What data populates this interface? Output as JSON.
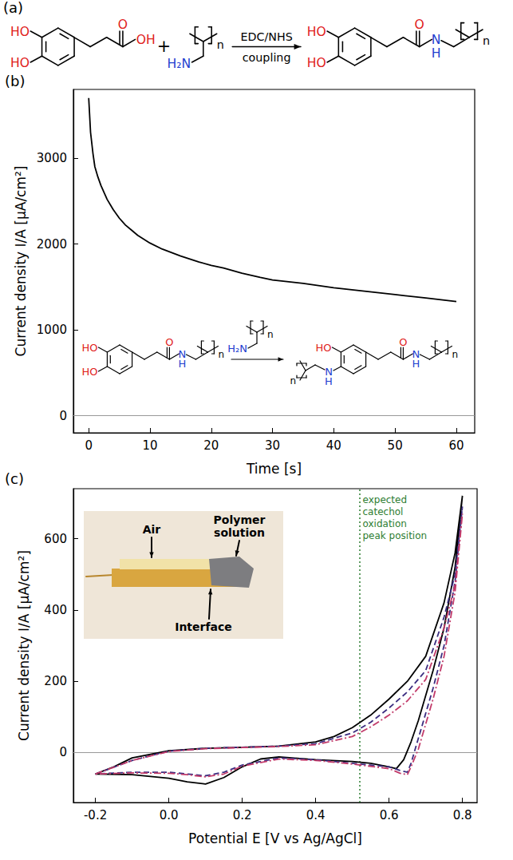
{
  "scheme_a": {
    "panel": "(a)",
    "reactant": {
      "hydroxyls": [
        "HO",
        "HO"
      ],
      "carbonyl": "O",
      "acid": "OH"
    },
    "plus": "+",
    "polymer": {
      "amine": "H₂N",
      "repeat": "n"
    },
    "arrow_above": "EDC/NHS",
    "arrow_below": "coupling",
    "product": {
      "hydroxyls": [
        "HO",
        "HO"
      ],
      "carbonyl": "O",
      "amide": [
        "N",
        "H"
      ],
      "repeat": "n"
    }
  },
  "scheme_b_inset": {
    "reactant": {
      "hydroxyls": [
        "HO",
        "HO"
      ],
      "carbonyl": "O",
      "amide": [
        "N",
        "H"
      ],
      "repeat": "n"
    },
    "polymer": {
      "amine": "H₂N",
      "repeat": "n"
    },
    "product": {
      "hydroxyl": "HO",
      "amine_link": [
        "N",
        "H"
      ],
      "link_repeat": "n",
      "carbonyl": "O",
      "amide": [
        "N",
        "H"
      ],
      "repeat": "n"
    }
  },
  "photo_inset_c": {
    "labels": {
      "air": "Air",
      "solution": "Polymer solution",
      "interface": "Interface"
    }
  },
  "chart_data": [
    {
      "type": "line",
      "panel": "(b)",
      "x_label": "Time [s]",
      "y_label": "Current density I/A [µA/cm²]",
      "xlim": [
        -2.5,
        63
      ],
      "xticks": [
        0,
        10,
        20,
        30,
        40,
        50,
        60
      ],
      "ylim": [
        -200,
        3800
      ],
      "yticks": [
        0,
        1000,
        2000,
        3000
      ],
      "grid": false,
      "hline": 0,
      "series": [
        {
          "color": "#000000",
          "line_style": "solid",
          "x": [
            0,
            0.3,
            0.7,
            1,
            1.5,
            2,
            3,
            4,
            5,
            6,
            7,
            8,
            10,
            12,
            15,
            18,
            20,
            22,
            25,
            28,
            30,
            35,
            40,
            45,
            50,
            55,
            60
          ],
          "values": [
            3700,
            3300,
            3050,
            2900,
            2780,
            2680,
            2520,
            2400,
            2300,
            2220,
            2160,
            2100,
            2010,
            1940,
            1860,
            1790,
            1750,
            1720,
            1660,
            1610,
            1580,
            1540,
            1490,
            1450,
            1410,
            1370,
            1330
          ]
        }
      ]
    },
    {
      "type": "line",
      "panel": "(c)",
      "x_label": "Potential E [V vs Ag/AgCl]",
      "y_label": "Current density I/A [µA/cm²]",
      "xlim": [
        -0.26,
        0.84
      ],
      "xticks": [
        -0.2,
        {
          "value": 0,
          "label": "0.0"
        },
        0.2,
        0.4,
        0.6,
        0.8
      ],
      "ylim": [
        -140,
        740
      ],
      "yticks": [
        0,
        200,
        400,
        600
      ],
      "grid": false,
      "hline": 0,
      "annotations": [
        {
          "text": "expected catechol oxidation peak position",
          "x": 0.515,
          "color": "#2e7d32",
          "line_style": "dotted"
        }
      ],
      "series": [
        {
          "color": "#000000",
          "line_style": "solid",
          "x": [
            -0.2,
            -0.15,
            -0.1,
            0,
            0.1,
            0.2,
            0.3,
            0.4,
            0.45,
            0.5,
            0.55,
            0.6,
            0.65,
            0.7,
            0.75,
            0.78,
            0.8,
            0.78,
            0.75,
            0.72,
            0.7,
            0.68,
            0.66,
            0.64,
            0.62,
            0.6,
            0.55,
            0.5,
            0.4,
            0.3,
            0.25,
            0.2,
            0.15,
            0.1,
            0.05,
            0,
            -0.1,
            -0.2
          ],
          "values": [
            -60,
            -40,
            -15,
            5,
            12,
            15,
            18,
            30,
            45,
            70,
            105,
            150,
            200,
            270,
            420,
            560,
            720,
            520,
            350,
            230,
            160,
            90,
            30,
            -20,
            -45,
            -40,
            -30,
            -25,
            -20,
            -12,
            -18,
            -40,
            -70,
            -88,
            -82,
            -72,
            -62,
            -60
          ]
        },
        {
          "color": "#3b2d80",
          "line_style": "dashed",
          "x": [
            -0.2,
            -0.1,
            0,
            0.1,
            0.2,
            0.3,
            0.4,
            0.5,
            0.55,
            0.6,
            0.65,
            0.7,
            0.75,
            0.78,
            0.8,
            0.78,
            0.75,
            0.72,
            0.7,
            0.68,
            0.66,
            0.65,
            0.63,
            0.6,
            0.5,
            0.4,
            0.3,
            0.2,
            0.15,
            0.1,
            0.05,
            0,
            -0.1,
            -0.2
          ],
          "values": [
            -60,
            -22,
            4,
            12,
            15,
            18,
            25,
            55,
            85,
            125,
            170,
            230,
            380,
            500,
            690,
            480,
            300,
            180,
            110,
            40,
            -30,
            -55,
            -50,
            -40,
            -30,
            -20,
            -15,
            -35,
            -55,
            -65,
            -60,
            -55,
            -55,
            -60
          ]
        },
        {
          "color": "#c23b6a",
          "line_style": "dashdot",
          "x": [
            -0.2,
            -0.1,
            0,
            0.1,
            0.2,
            0.3,
            0.4,
            0.5,
            0.55,
            0.6,
            0.65,
            0.7,
            0.75,
            0.78,
            0.8,
            0.78,
            0.75,
            0.72,
            0.7,
            0.68,
            0.66,
            0.65,
            0.63,
            0.6,
            0.5,
            0.4,
            0.3,
            0.2,
            0.15,
            0.1,
            0.05,
            0,
            -0.1,
            -0.2
          ],
          "values": [
            -60,
            -22,
            3,
            11,
            14,
            17,
            22,
            45,
            72,
            105,
            145,
            205,
            350,
            470,
            670,
            450,
            270,
            150,
            80,
            10,
            -40,
            -62,
            -58,
            -45,
            -32,
            -22,
            -18,
            -38,
            -60,
            -68,
            -62,
            -58,
            -57,
            -60
          ]
        }
      ]
    }
  ]
}
